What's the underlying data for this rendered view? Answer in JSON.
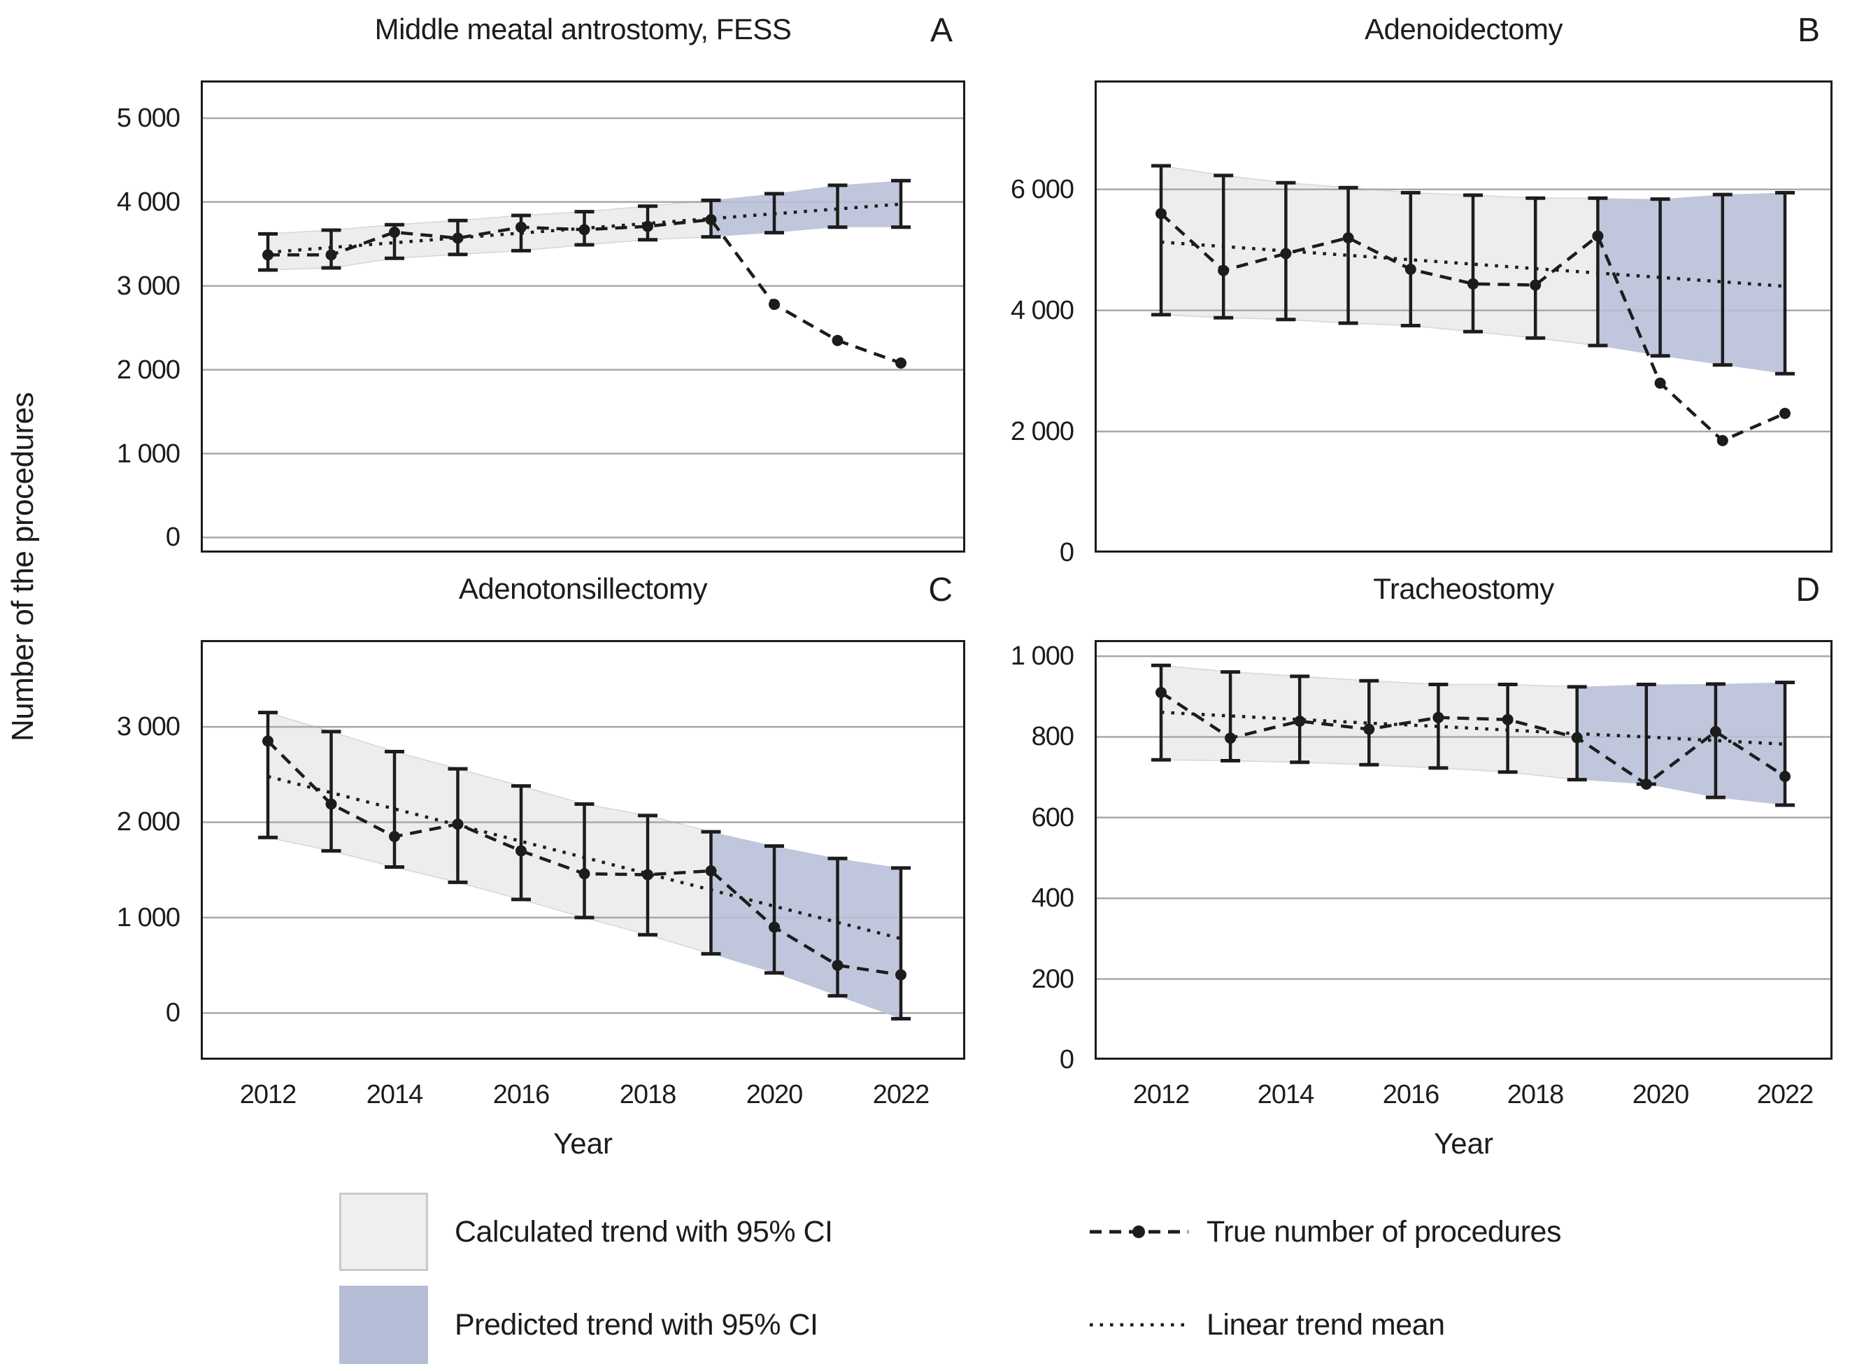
{
  "figure": {
    "y_axis_label": "Number of the procedures",
    "x_axis_label": "Year",
    "x_tick_labels": [
      "2012",
      "2014",
      "2016",
      "2018",
      "2020",
      "2022"
    ]
  },
  "legend": {
    "calculated_label": "Calculated trend with 95% CI",
    "predicted_label": "Predicted trend with 95% CI",
    "true_label": "True number of procedures",
    "trend_label": "Linear trend mean"
  },
  "colors": {
    "calculated_band": "#ededed",
    "calculated_band_edge": "#d6d6d6",
    "predicted_band": "#b7bed7",
    "line": "#1c1c1c",
    "gridline": "#a8a8a8",
    "background": "#ffffff"
  },
  "chart_data": [
    {
      "panel": "A",
      "letter": "A",
      "title": "Middle meatal antrostomy, FESS",
      "type": "line",
      "years": [
        2012,
        2013,
        2014,
        2015,
        2016,
        2017,
        2018,
        2019,
        2020,
        2021,
        2022
      ],
      "series": [
        {
          "name": "True number of procedures",
          "values": [
            3370,
            3370,
            3640,
            3570,
            3700,
            3670,
            3710,
            3790,
            2780,
            2350,
            2080
          ]
        },
        {
          "name": "Linear trend mean",
          "values": [
            3400,
            3458,
            3515,
            3573,
            3630,
            3688,
            3745,
            3803,
            3860,
            3918,
            3975
          ]
        },
        {
          "name": "95% CI lower",
          "values": [
            3190,
            3215,
            3330,
            3375,
            3420,
            3490,
            3550,
            3585,
            3635,
            3700,
            3700
          ]
        },
        {
          "name": "95% CI upper",
          "values": [
            3620,
            3665,
            3730,
            3780,
            3840,
            3885,
            3950,
            4020,
            4100,
            4200,
            4255
          ]
        }
      ],
      "prediction_start_index": 7,
      "ylim": [
        -180,
        5450
      ],
      "y_ticks": [
        {
          "value": 0,
          "label": "0"
        },
        {
          "value": 1000,
          "label": "1 000"
        },
        {
          "value": 2000,
          "label": "2 000"
        },
        {
          "value": 3000,
          "label": "3 000"
        },
        {
          "value": 4000,
          "label": "4 000"
        },
        {
          "value": 5000,
          "label": "5 000"
        }
      ],
      "grid": true,
      "show_x_ticks": false,
      "show_x_label": false
    },
    {
      "panel": "B",
      "letter": "B",
      "title": "Adenoidectomy",
      "type": "line",
      "years": [
        2012,
        2013,
        2014,
        2015,
        2016,
        2017,
        2018,
        2019,
        2020,
        2021,
        2022
      ],
      "series": [
        {
          "name": "True number of procedures",
          "values": [
            5600,
            4660,
            4940,
            5200,
            4680,
            4440,
            4420,
            5230,
            2800,
            1850,
            2300
          ]
        },
        {
          "name": "Linear trend mean",
          "values": [
            5130,
            5057,
            4984,
            4911,
            4838,
            4765,
            4692,
            4619,
            4546,
            4473,
            4400
          ]
        },
        {
          "name": "95% CI lower",
          "values": [
            3930,
            3880,
            3850,
            3790,
            3750,
            3650,
            3545,
            3420,
            3250,
            3100,
            2955
          ]
        },
        {
          "name": "95% CI upper",
          "values": [
            6390,
            6230,
            6110,
            6030,
            5945,
            5905,
            5855,
            5855,
            5840,
            5915,
            5945
          ]
        }
      ],
      "prediction_start_index": 7,
      "ylim": [
        0,
        7800
      ],
      "y_ticks": [
        {
          "value": 0,
          "label": "0"
        },
        {
          "value": 2000,
          "label": "2 000"
        },
        {
          "value": 4000,
          "label": "4 000"
        },
        {
          "value": 6000,
          "label": "6 000"
        }
      ],
      "grid": true,
      "show_x_ticks": false,
      "show_x_label": false
    },
    {
      "panel": "C",
      "letter": "C",
      "title": "Adenotonsillectomy",
      "type": "line",
      "years": [
        2012,
        2013,
        2014,
        2015,
        2016,
        2017,
        2018,
        2019,
        2020,
        2021,
        2022
      ],
      "series": [
        {
          "name": "True number of procedures",
          "values": [
            2850,
            2190,
            1850,
            1980,
            1700,
            1460,
            1450,
            1490,
            900,
            500,
            400
          ]
        },
        {
          "name": "Linear trend mean",
          "values": [
            2480,
            2310,
            2140,
            1970,
            1800,
            1630,
            1460,
            1290,
            1120,
            950,
            780
          ]
        },
        {
          "name": "95% CI lower",
          "values": [
            1840,
            1700,
            1530,
            1370,
            1190,
            1000,
            820,
            620,
            420,
            180,
            -60
          ]
        },
        {
          "name": "95% CI upper",
          "values": [
            3150,
            2950,
            2740,
            2560,
            2380,
            2190,
            2070,
            1900,
            1750,
            1620,
            1520
          ]
        }
      ],
      "prediction_start_index": 7,
      "ylim": [
        -490,
        3910
      ],
      "y_ticks": [
        {
          "value": 0,
          "label": "0"
        },
        {
          "value": 1000,
          "label": "1 000"
        },
        {
          "value": 2000,
          "label": "2 000"
        },
        {
          "value": 3000,
          "label": "3 000"
        }
      ],
      "grid": true,
      "show_x_ticks": true,
      "show_x_label": true
    },
    {
      "panel": "D",
      "letter": "D",
      "title": "Tracheostomy",
      "type": "line",
      "years": [
        2012,
        2013,
        2014,
        2015,
        2016,
        2017,
        2019,
        2020,
        2021,
        2022
      ],
      "series": [
        {
          "name": "True number of procedures",
          "values": [
            910,
            797,
            839,
            819,
            848,
            843,
            798,
            683,
            813,
            702
          ]
        },
        {
          "name": "Linear trend mean",
          "values": [
            861,
            852,
            843,
            834,
            826,
            817,
            808,
            800,
            791,
            782
          ]
        },
        {
          "name": "95% CI lower",
          "values": [
            743,
            741,
            737,
            731,
            723,
            713,
            694,
            683,
            650,
            631
          ]
        },
        {
          "name": "95% CI upper",
          "values": [
            977,
            961,
            950,
            939,
            930,
            930,
            924,
            930,
            931,
            935
          ]
        }
      ],
      "prediction_start_index": 6,
      "ylim": [
        0,
        1040
      ],
      "y_ticks": [
        {
          "value": 0,
          "label": "0"
        },
        {
          "value": 200,
          "label": "200"
        },
        {
          "value": 400,
          "label": "400"
        },
        {
          "value": 600,
          "label": "600"
        },
        {
          "value": 800,
          "label": "800"
        },
        {
          "value": 1000,
          "label": "1 000"
        }
      ],
      "grid": true,
      "show_x_ticks": true,
      "show_x_label": true
    }
  ]
}
